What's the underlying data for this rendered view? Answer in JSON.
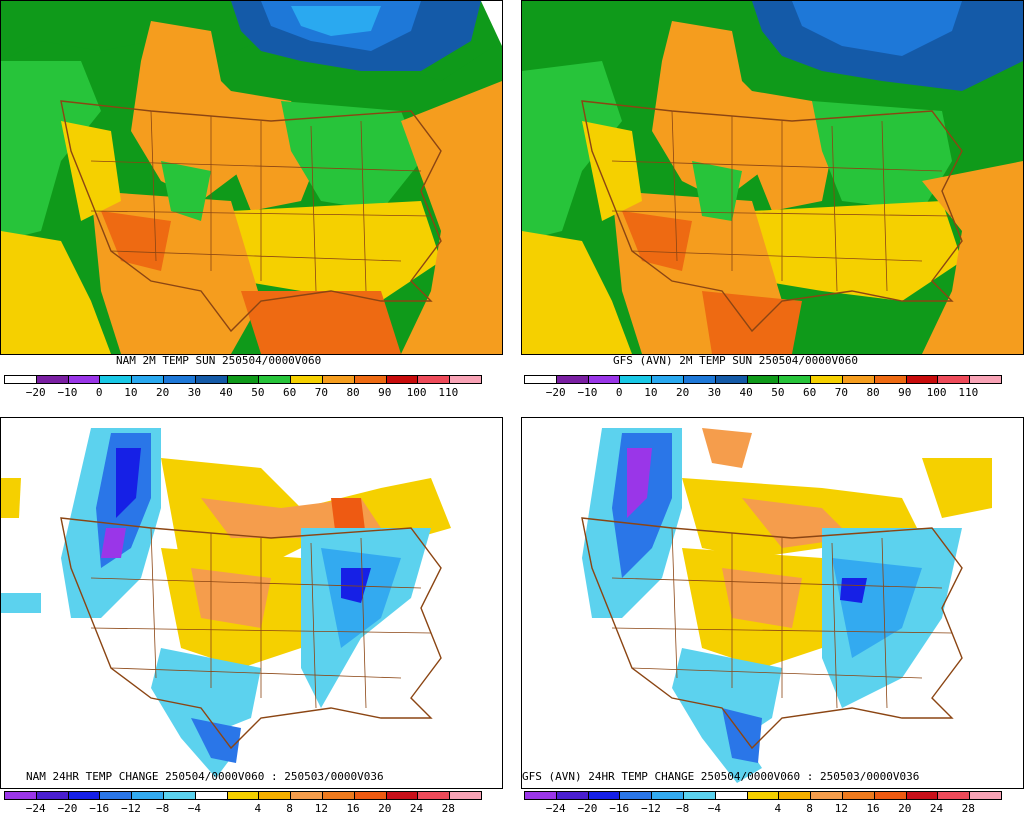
{
  "panels": [
    {
      "caption": "NAM 2M TEMP  SUN 250504/0000V060",
      "kind": "temp",
      "ticks": [
        "−20",
        "−10",
        "0",
        "10",
        "20",
        "30",
        "40",
        "50",
        "60",
        "70",
        "80",
        "90",
        "100",
        "110"
      ]
    },
    {
      "caption": "GFS (AVN) 2M TEMP  SUN 250504/0000V060",
      "kind": "temp",
      "ticks": [
        "−20",
        "−10",
        "0",
        "10",
        "20",
        "30",
        "40",
        "50",
        "60",
        "70",
        "80",
        "90",
        "100",
        "110"
      ]
    },
    {
      "caption": "NAM 24HR TEMP CHANGE 250504/0000V060 : 250503/0000V036",
      "kind": "change",
      "ticks": [
        "−24",
        "−20",
        "−16",
        "−12",
        "−8",
        "−4",
        "4",
        "8",
        "12",
        "16",
        "20",
        "24",
        "28"
      ]
    },
    {
      "caption": "GFS (AVN) 24HR TEMP CHANGE 250504/0000V060 : 250503/0000V036",
      "kind": "change",
      "ticks": [
        "−24",
        "−20",
        "−16",
        "−12",
        "−8",
        "−4",
        "4",
        "8",
        "12",
        "16",
        "20",
        "24",
        "28"
      ]
    }
  ],
  "palettes": {
    "temp": [
      "#ffffff",
      "#7a1fa2",
      "#9a36e8",
      "#19c8e6",
      "#2aa9f0",
      "#1e78d8",
      "#145aa8",
      "#0f9a1a",
      "#27c43a",
      "#f5d000",
      "#f59d1e",
      "#ee6a12",
      "#c80c0c",
      "#ee4b5a",
      "#f8a3b6"
    ],
    "change": [
      "#9a36e8",
      "#4a1fd0",
      "#1620e6",
      "#2a76e8",
      "#33aaf0",
      "#5cd2ee",
      "#ffffff",
      "#f5d000",
      "#f5b000",
      "#f59d4c",
      "#ee7a1e",
      "#ee5a12",
      "#c8101a",
      "#ee4b5a",
      "#f8a3b6"
    ]
  }
}
